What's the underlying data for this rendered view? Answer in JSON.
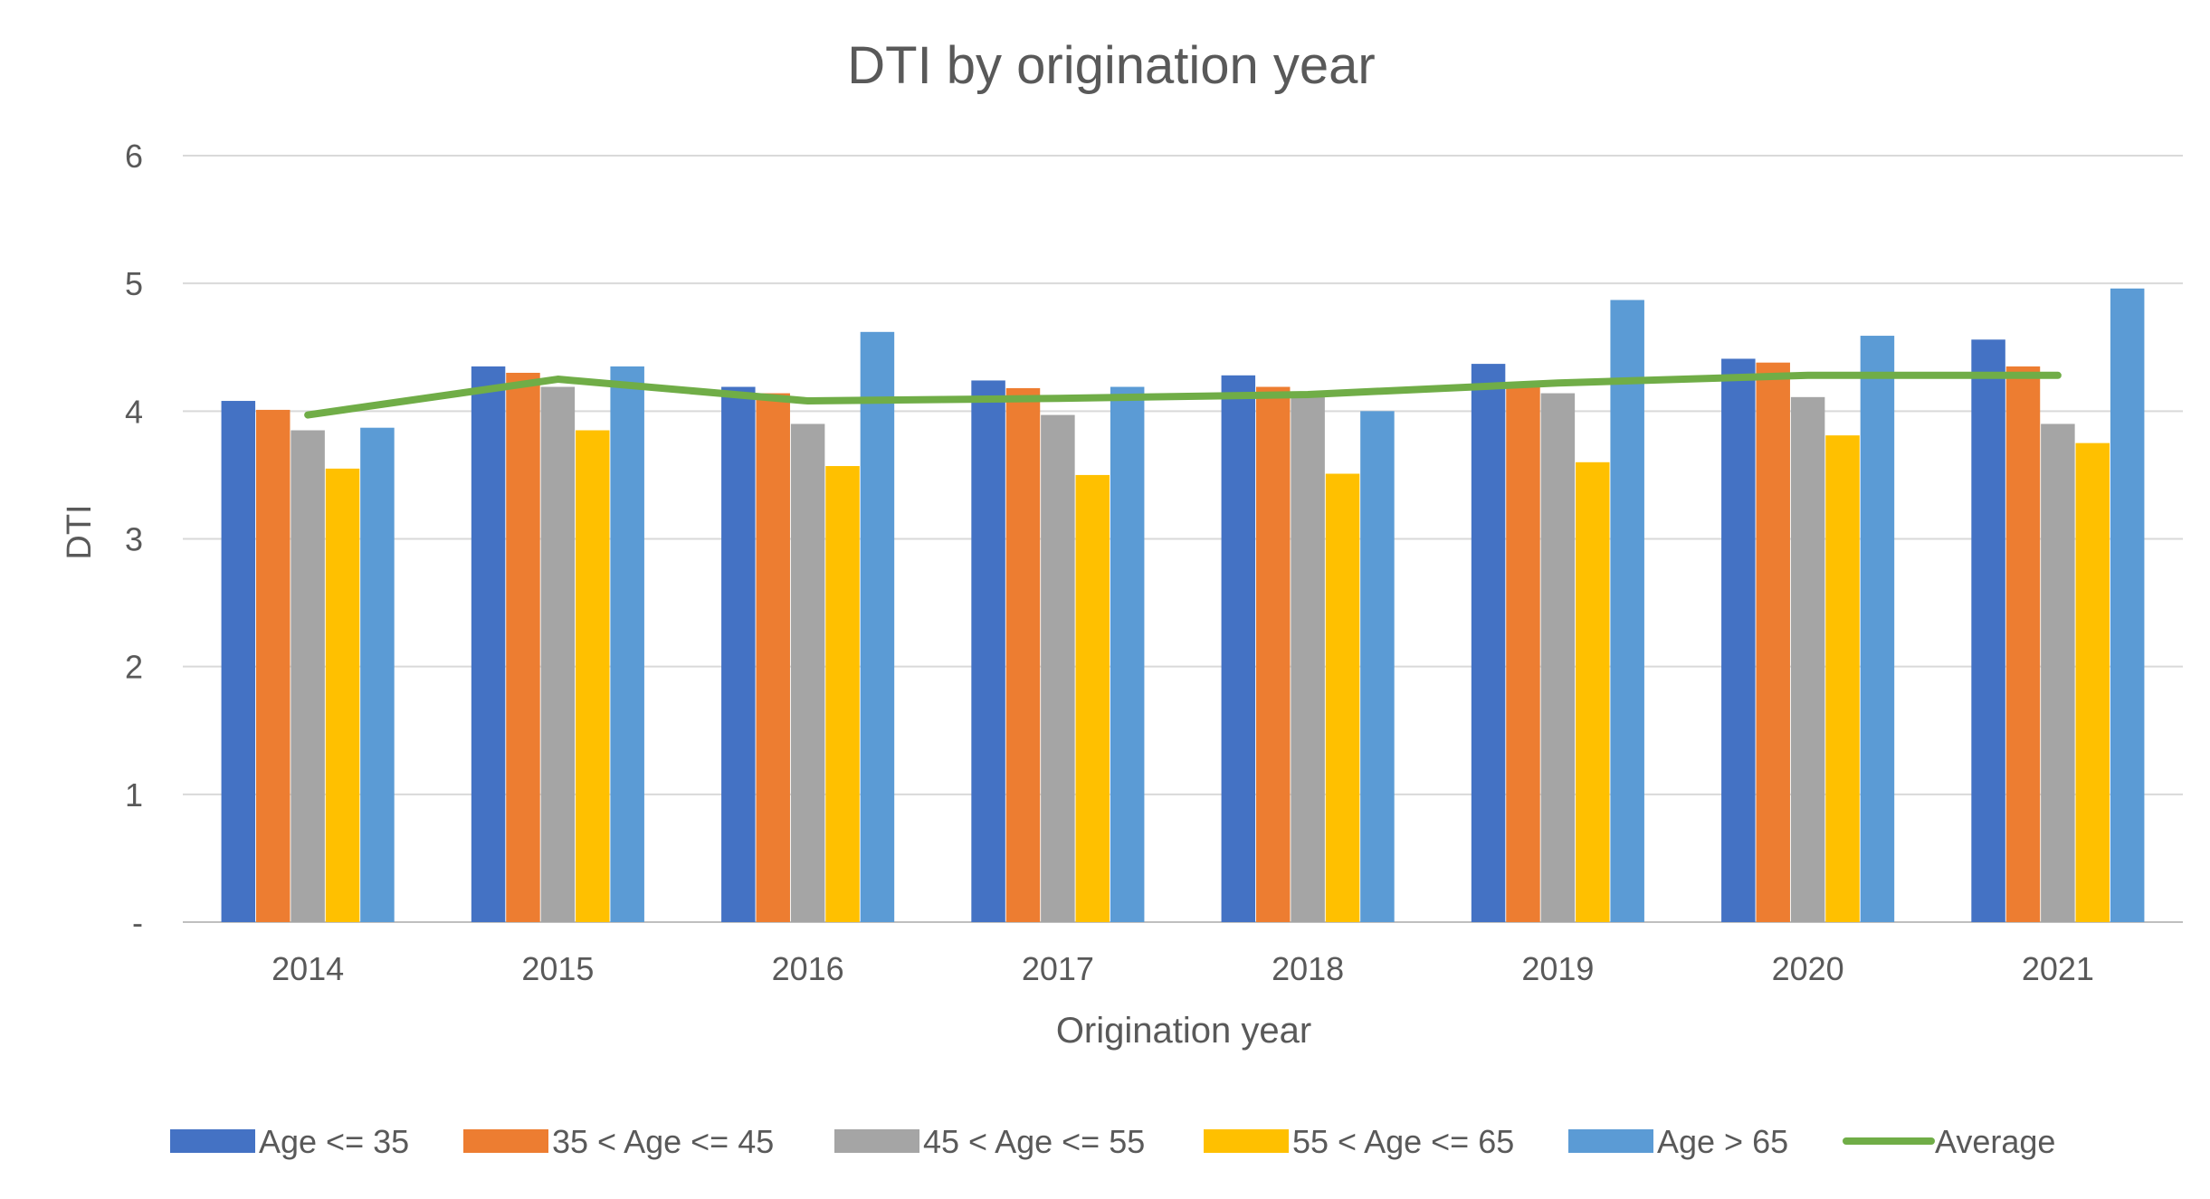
{
  "chart_data": {
    "type": "bar",
    "title": "DTI by origination year",
    "xlabel": "Origination year",
    "ylabel": "DTI",
    "ylim": [
      0,
      6
    ],
    "yticks": [
      0,
      1,
      2,
      3,
      4,
      5,
      6
    ],
    "ytick_labels": [
      "-",
      "1",
      "2",
      "3",
      "4",
      "5",
      "6"
    ],
    "grid": true,
    "legend_position": "bottom",
    "categories": [
      "2014",
      "2015",
      "2016",
      "2017",
      "2018",
      "2019",
      "2020",
      "2021"
    ],
    "series": [
      {
        "name": "Age <= 35",
        "kind": "bar",
        "color": "#4472C4",
        "values": [
          4.08,
          4.35,
          4.19,
          4.24,
          4.28,
          4.37,
          4.41,
          4.56
        ]
      },
      {
        "name": "35 < Age <= 45",
        "kind": "bar",
        "color": "#ED7D31",
        "values": [
          4.01,
          4.3,
          4.14,
          4.18,
          4.19,
          4.22,
          4.38,
          4.35
        ]
      },
      {
        "name": "45 < Age <= 55",
        "kind": "bar",
        "color": "#A5A5A5",
        "values": [
          3.85,
          4.19,
          3.9,
          3.97,
          4.12,
          4.14,
          4.11,
          3.9
        ]
      },
      {
        "name": "55 < Age <= 65",
        "kind": "bar",
        "color": "#FFC000",
        "values": [
          3.55,
          3.85,
          3.57,
          3.5,
          3.51,
          3.6,
          3.81,
          3.75
        ]
      },
      {
        "name": "Age > 65",
        "kind": "bar",
        "color": "#5B9BD5",
        "values": [
          3.87,
          4.35,
          4.62,
          4.19,
          4.0,
          4.87,
          4.59,
          4.96
        ]
      },
      {
        "name": "Average",
        "kind": "line",
        "color": "#70AD47",
        "values": [
          3.97,
          4.25,
          4.08,
          4.1,
          4.13,
          4.22,
          4.28,
          4.28
        ]
      }
    ]
  }
}
